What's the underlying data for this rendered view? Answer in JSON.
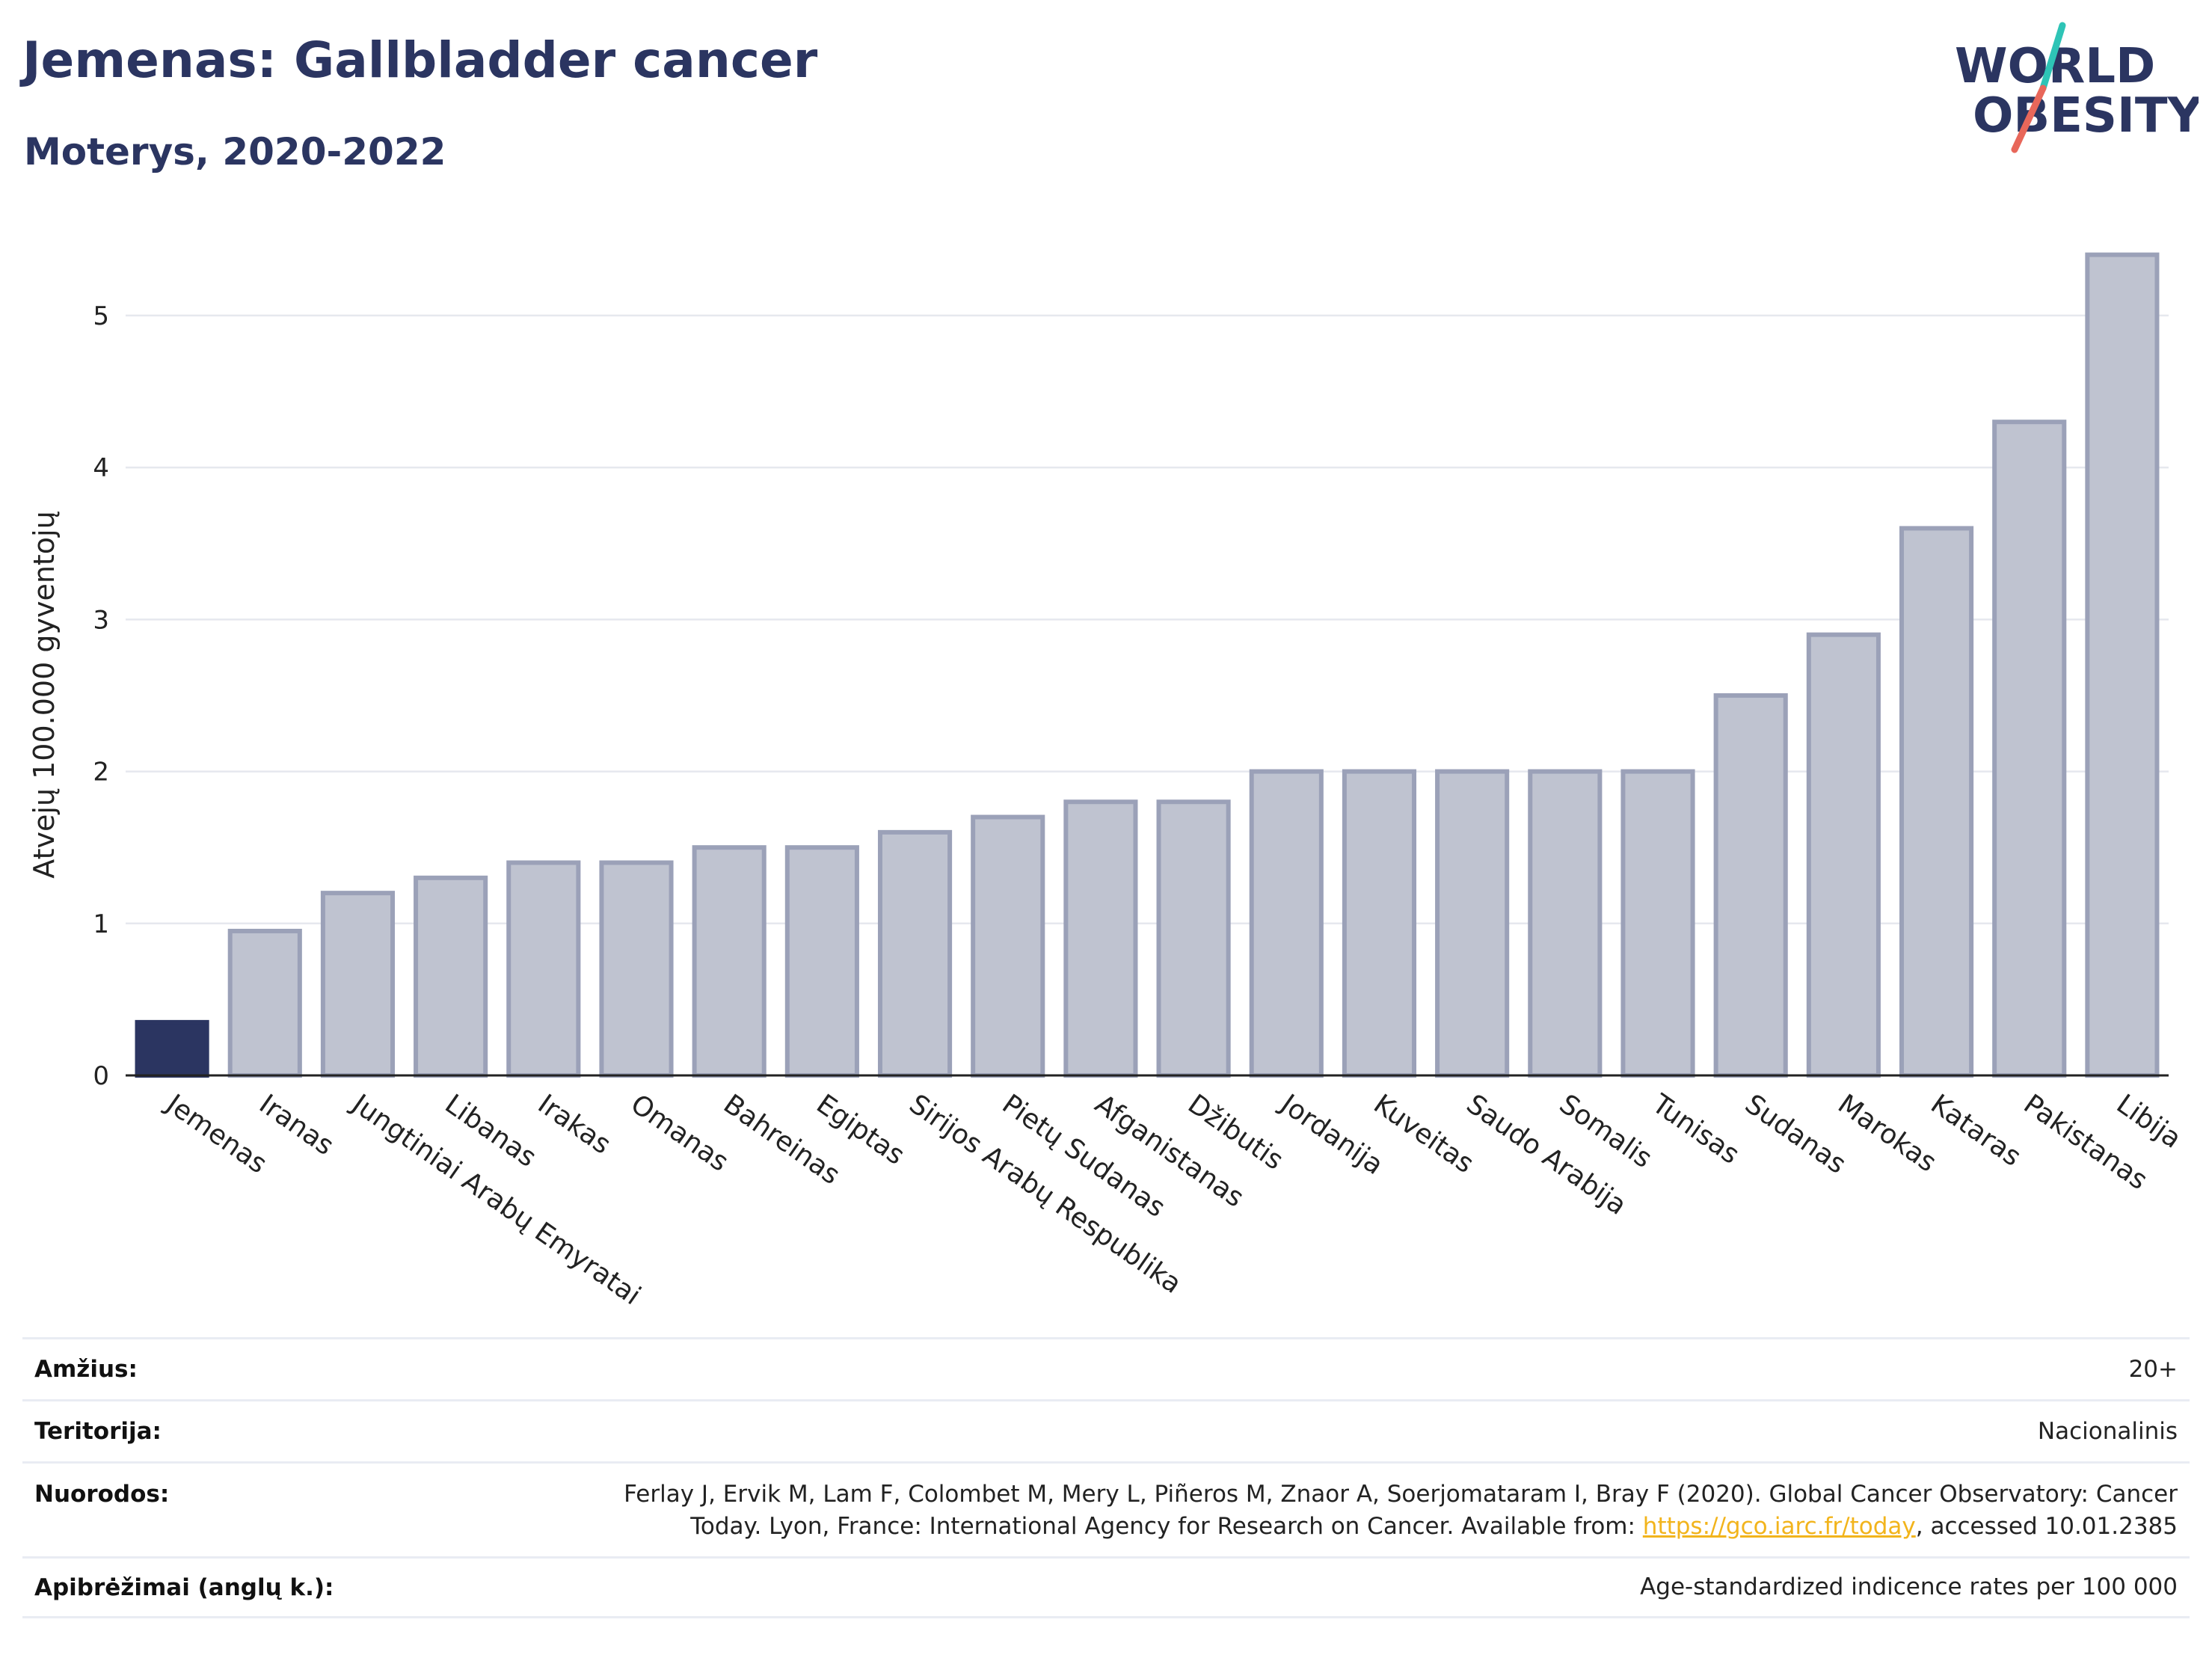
{
  "title": "Jemenas: Gallbladder cancer",
  "subtitle": "Moterys, 2020-2022",
  "logo": {
    "line1": "WORLD",
    "line2": "OBESITY",
    "accent_colors": [
      "#2ec4b6",
      "#e8675a"
    ],
    "text_color": "#2b3561"
  },
  "colors": {
    "highlight": "#2b3561",
    "bar_fill": "#bfc3d0",
    "bar_stroke": "#9ba1b8",
    "grid": "#e6e8ee",
    "title": "#2b3561",
    "link": "#f2b41c"
  },
  "chart_data": {
    "type": "bar",
    "ylabel": "Atvejų 100.000 gyventojų",
    "xlabel": "",
    "ylim": [
      0,
      5.6
    ],
    "yticks": [
      0,
      1,
      2,
      3,
      4,
      5
    ],
    "highlight": "Jemenas",
    "grid": true,
    "categories": [
      "Jemenas",
      "Iranas",
      "Jungtiniai Arabų Emyratai",
      "Libanas",
      "Irakas",
      "Omanas",
      "Bahreinas",
      "Egiptas",
      "Sirijos Arabų Respublika",
      "Pietų Sudanas",
      "Afganistanas",
      "Džibutis",
      "Jordanija",
      "Kuveitas",
      "Saudo Arabija",
      "Somalis",
      "Tunisas",
      "Sudanas",
      "Marokas",
      "Kataras",
      "Pakistanas",
      "Libija"
    ],
    "values": [
      0.35,
      0.95,
      1.2,
      1.3,
      1.4,
      1.4,
      1.5,
      1.5,
      1.6,
      1.7,
      1.8,
      1.8,
      2.0,
      2.0,
      2.0,
      2.0,
      2.0,
      2.5,
      2.9,
      3.6,
      4.3,
      5.4
    ]
  },
  "info": {
    "age_label": "Amžius:",
    "age_value": "20+",
    "territory_label": "Teritorija:",
    "territory_value": "Nacionalinis",
    "references_label": "Nuorodos:",
    "references_line1": "Ferlay J, Ervik M, Lam F, Colombet M, Mery L, Piñeros M, Znaor A, Soerjomataram I, Bray F (2020). Global Cancer Observatory: Cancer",
    "references_line2_pre": "Today. Lyon, France: International Agency for Research on Cancer. Available from: ",
    "references_link": "https://gco.iarc.fr/today",
    "references_line2_post": ", accessed 10.01.2385",
    "definitions_label": "Apibrėžimai (anglų k.):",
    "definitions_value": "Age-standardized indicence rates per 100 000"
  }
}
